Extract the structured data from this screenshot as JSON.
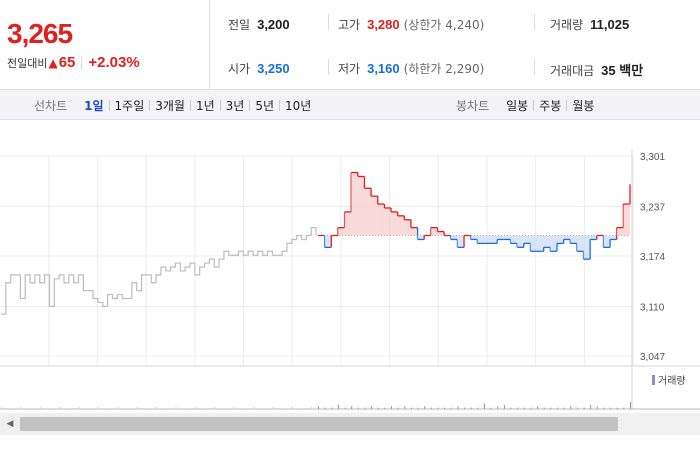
{
  "quote": {
    "price": "3,265",
    "change_label": "전일대비",
    "change_arrow": "▲",
    "change_value": "65",
    "change_pct": "+2.03%",
    "prev_label": "전일",
    "prev_value": "3,200",
    "high_label": "고가",
    "high_value": "3,280",
    "high_sub": "(상한가 4,240)",
    "volume_label": "거래량",
    "volume_value": "11,025",
    "open_label": "시가",
    "open_value": "3,250",
    "low_label": "저가",
    "low_value": "3,160",
    "low_sub": "(하한가 2,290)",
    "amount_label": "거래대금",
    "amount_value": "35 백만"
  },
  "toolbar": {
    "line_title": "선차트",
    "line_items": [
      "1일",
      "1주일",
      "3개월",
      "1년",
      "3년",
      "5년",
      "10년"
    ],
    "line_active": "1일",
    "candle_title": "봉차트",
    "candle_items": [
      "일봉",
      "주봉",
      "월봉"
    ]
  },
  "chart_data": {
    "type": "line",
    "y_ticks": [
      "3,301",
      "3,237",
      "3,174",
      "3,110",
      "3,047"
    ],
    "ylim": [
      3047,
      3301
    ],
    "reference_line": 3200,
    "colors": {
      "up": "#e02020",
      "down": "#1a6fe0",
      "prev_day": "#bdbdbd",
      "fill_up": "#f7c9c9",
      "fill_down": "#c9d9f3"
    },
    "prev_day_series": [
      3100,
      3140,
      3150,
      3150,
      3120,
      3150,
      3140,
      3150,
      3140,
      3150,
      3110,
      3145,
      3150,
      3140,
      3150,
      3140,
      3150,
      3130,
      3130,
      3120,
      3115,
      3110,
      3125,
      3120,
      3125,
      3120,
      3120,
      3140,
      3130,
      3150,
      3150,
      3140,
      3150,
      3160,
      3155,
      3160,
      3165,
      3155,
      3160,
      3165,
      3150,
      3160,
      3165,
      3170,
      3160,
      3170,
      3180,
      3175,
      3175,
      3180,
      3175,
      3180,
      3175,
      3180,
      3175,
      3180,
      3175,
      3175,
      3180,
      3190,
      3195,
      3200,
      3195,
      3200,
      3210,
      3200
    ],
    "today_series": [
      3200,
      3185,
      3200,
      3210,
      3230,
      3280,
      3275,
      3260,
      3250,
      3240,
      3235,
      3230,
      3225,
      3220,
      3210,
      3195,
      3200,
      3210,
      3205,
      3200,
      3195,
      3185,
      3200,
      3195,
      3190,
      3190,
      3190,
      3195,
      3195,
      3190,
      3185,
      3190,
      3180,
      3180,
      3185,
      3180,
      3190,
      3195,
      3190,
      3180,
      3170,
      3195,
      3200,
      3185,
      3195,
      3210,
      3240,
      3265
    ],
    "volume_legend": "거래량",
    "volume": [
      2,
      1,
      1,
      3,
      1,
      2,
      1,
      1,
      2,
      1,
      1,
      2,
      1,
      2,
      1,
      1,
      2,
      1,
      1,
      1,
      1,
      2,
      1,
      1,
      1,
      4,
      1,
      2,
      3,
      1,
      1,
      1,
      1,
      2,
      1,
      1,
      1,
      1,
      2,
      1,
      1,
      3,
      2,
      1,
      1,
      1,
      1,
      5
    ]
  }
}
